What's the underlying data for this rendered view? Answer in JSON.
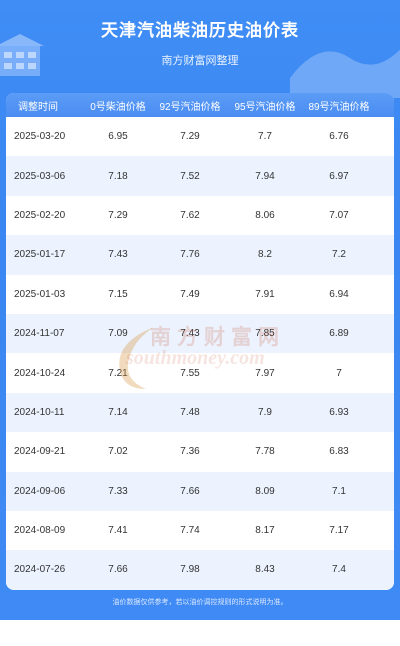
{
  "header": {
    "title": "天津汽油柴油历史油价表",
    "subtitle": "南方财富网整理"
  },
  "table": {
    "columns": [
      "调整时间",
      "0号柴油价格",
      "92号汽油价格",
      "95号汽油价格",
      "89号汽油价格"
    ],
    "rows": [
      [
        "2025-03-20",
        "6.95",
        "7.29",
        "7.7",
        "6.76"
      ],
      [
        "2025-03-06",
        "7.18",
        "7.52",
        "7.94",
        "6.97"
      ],
      [
        "2025-02-20",
        "7.29",
        "7.62",
        "8.06",
        "7.07"
      ],
      [
        "2025-01-17",
        "7.43",
        "7.76",
        "8.2",
        "7.2"
      ],
      [
        "2025-01-03",
        "7.15",
        "7.49",
        "7.91",
        "6.94"
      ],
      [
        "2024-11-07",
        "7.09",
        "7.43",
        "7.85",
        "6.89"
      ],
      [
        "2024-10-24",
        "7.21",
        "7.55",
        "7.97",
        "7"
      ],
      [
        "2024-10-11",
        "7.14",
        "7.48",
        "7.9",
        "6.93"
      ],
      [
        "2024-09-21",
        "7.02",
        "7.36",
        "7.78",
        "6.83"
      ],
      [
        "2024-09-06",
        "7.33",
        "7.66",
        "8.09",
        "7.1"
      ],
      [
        "2024-08-09",
        "7.41",
        "7.74",
        "8.17",
        "7.17"
      ],
      [
        "2024-07-26",
        "7.66",
        "7.98",
        "8.43",
        "7.4"
      ]
    ]
  },
  "watermark": {
    "cn": "南方财富网",
    "en": "southmoney.com"
  },
  "footer": {
    "note": "油价数据仅供参考，若以油价调控规则的形式说明为准。"
  },
  "colors": {
    "background_blue": "#3f8df5",
    "header_row": "#4a8cf2",
    "alt_row": "#ecf3fe",
    "watermark": "#c85a3c"
  }
}
